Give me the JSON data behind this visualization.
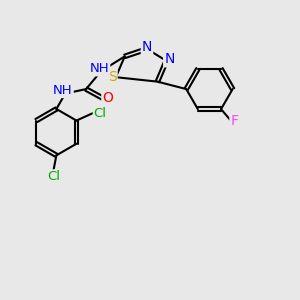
{
  "background_color": "#e8e8e8",
  "atom_colors": {
    "N": "#0000ff",
    "S": "#ccaa00",
    "O": "#ff0000",
    "F": "#ff44ff",
    "Cl": "#00aa00",
    "C": "#000000",
    "H": "#555555"
  },
  "bond_color": "#000000",
  "bond_width": 1.5,
  "dbo": 0.06
}
